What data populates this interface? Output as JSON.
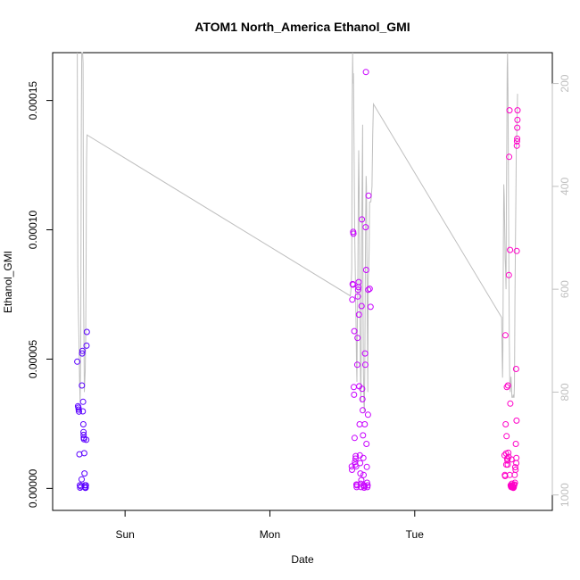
{
  "chart_data": {
    "type": "scatter",
    "title": "ATOM1 North_America Ethanol_GMI",
    "xlabel": "Date",
    "ylabel": "Ethanol_GMI",
    "x_ticks": [
      "Sun",
      "Mon",
      "Tue"
    ],
    "y_ticks": [
      "0.00000",
      "0.00005",
      "0.00010",
      "0.00015"
    ],
    "ylim": [
      -8.5e-06,
      0.0001685
    ],
    "secondary_y": {
      "ticks": [
        "200",
        "400",
        "600",
        "800",
        "1000"
      ],
      "range": [
        1030,
        140
      ],
      "line_color": "#bfbfbf"
    },
    "series": [
      {
        "points": [
          [
            -0.33,
            4.9e-05
          ],
          [
            -0.325,
            3.18e-05
          ],
          [
            -0.322,
            3.12e-05
          ],
          [
            -0.32,
            3.05e-05
          ],
          [
            -0.318,
            2.97e-05
          ],
          [
            -0.315,
            1.32e-05
          ],
          [
            -0.312,
            1.2e-06
          ],
          [
            -0.31,
            3e-07
          ],
          [
            -0.305,
            8e-07
          ],
          [
            -0.3,
            3.5e-06
          ],
          [
            -0.298,
            3.98e-05
          ],
          [
            -0.296,
            5.22e-05
          ],
          [
            -0.294,
            5.32e-05
          ],
          [
            -0.292,
            2.98e-05
          ],
          [
            -0.29,
            3.35e-05
          ],
          [
            -0.288,
            2.48e-05
          ],
          [
            -0.287,
            2.18e-05
          ],
          [
            -0.286,
            2.07e-05
          ],
          [
            -0.285,
            1.96e-05
          ],
          [
            -0.284,
            1.9e-05
          ],
          [
            -0.282,
            1.36e-05
          ],
          [
            -0.28,
            5.8e-06
          ],
          [
            -0.278,
            1.2e-06
          ],
          [
            -0.276,
            5e-07
          ],
          [
            -0.274,
            2e-07
          ],
          [
            -0.272,
            3e-07
          ],
          [
            -0.27,
            1.2e-06
          ],
          [
            -0.268,
            1.88e-05
          ],
          [
            -0.266,
            5.52e-05
          ],
          [
            -0.264,
            6.05e-05
          ]
        ],
        "color": "#5a00ff"
      },
      {
        "points": [
          [
            1.565,
            8.5e-06
          ],
          [
            1.567,
            7.2e-06
          ],
          [
            1.569,
            7.3e-05
          ],
          [
            1.571,
            7.9e-05
          ],
          [
            1.573,
            7.88e-05
          ],
          [
            1.575,
            9.92e-05
          ],
          [
            1.577,
            9.85e-05
          ],
          [
            1.579,
            3.92e-05
          ],
          [
            1.581,
            3.62e-05
          ],
          [
            1.583,
            6.08e-05
          ],
          [
            1.585,
            1.95e-05
          ],
          [
            1.587,
            1.02e-05
          ],
          [
            1.589,
            9.2e-06
          ],
          [
            1.591,
            1.15e-05
          ],
          [
            1.593,
            1.25e-05
          ],
          [
            1.595,
            8.5e-06
          ],
          [
            1.597,
            1.5e-06
          ],
          [
            1.599,
            5e-07
          ],
          [
            1.601,
            1.2e-06
          ],
          [
            1.603,
            4.78e-05
          ],
          [
            1.605,
            5.82e-05
          ],
          [
            1.607,
            7.42e-05
          ],
          [
            1.609,
            7.68e-05
          ],
          [
            1.611,
            7.78e-05
          ],
          [
            1.613,
            7.98e-05
          ],
          [
            1.615,
            6.72e-05
          ],
          [
            1.617,
            3.95e-05
          ],
          [
            1.619,
            2.48e-05
          ],
          [
            1.621,
            1.28e-05
          ],
          [
            1.623,
            9.8e-06
          ],
          [
            1.625,
            5.8e-06
          ],
          [
            1.627,
            1.8e-06
          ],
          [
            1.629,
            5e-07
          ],
          [
            1.631,
            3.2e-06
          ],
          [
            1.633,
            7.05e-05
          ],
          [
            1.635,
            0.000104
          ],
          [
            1.637,
            3.85e-05
          ],
          [
            1.639,
            3.45e-05
          ],
          [
            1.641,
            3.02e-05
          ],
          [
            1.643,
            2.05e-05
          ],
          [
            1.645,
            1.18e-05
          ],
          [
            1.647,
            5.2e-06
          ],
          [
            1.649,
            1.2e-06
          ],
          [
            1.651,
            3e-07
          ],
          [
            1.653,
            8e-07
          ],
          [
            1.655,
            2.48e-05
          ],
          [
            1.657,
            5.22e-05
          ],
          [
            1.659,
            4.78e-05
          ],
          [
            1.661,
            0.000101
          ],
          [
            1.663,
            0.000161
          ],
          [
            1.665,
            8.45e-05
          ],
          [
            1.667,
            1.72e-05
          ],
          [
            1.669,
            8.3e-06
          ],
          [
            1.671,
            2.2e-06
          ],
          [
            1.673,
            5e-07
          ],
          [
            1.675,
            1.2e-06
          ],
          [
            1.677,
            2.85e-05
          ],
          [
            1.679,
            7.68e-05
          ],
          [
            1.681,
            0.0001132
          ],
          [
            1.689,
            7.72e-05
          ],
          [
            1.695,
            7.02e-05
          ]
        ],
        "color": "#c800ff"
      },
      {
        "points": [
          [
            2.62,
            1.28e-05
          ],
          [
            2.622,
            5.2e-06
          ],
          [
            2.624,
            4.8e-06
          ],
          [
            2.626,
            5.92e-05
          ],
          [
            2.628,
            2.48e-05
          ],
          [
            2.63,
            1.35e-05
          ],
          [
            2.632,
            9.2e-06
          ],
          [
            2.634,
            2.02e-05
          ],
          [
            2.636,
            3.92e-05
          ],
          [
            2.638,
            1.15e-05
          ],
          [
            2.64,
            1.08e-05
          ],
          [
            2.642,
            9.2e-06
          ],
          [
            2.644,
            3.98e-05
          ],
          [
            2.646,
            1.38e-05
          ],
          [
            2.648,
            1.22e-05
          ],
          [
            2.65,
            8.25e-05
          ],
          [
            2.652,
            0.0001282
          ],
          [
            2.654,
            0.0001462
          ],
          [
            2.656,
            5.2e-06
          ],
          [
            2.658,
            9.22e-05
          ],
          [
            2.66,
            3.28e-05
          ],
          [
            2.662,
            1.2e-06
          ],
          [
            2.664,
            8e-07
          ],
          [
            2.666,
            5e-07
          ],
          [
            2.668,
            1.12e-05
          ],
          [
            2.67,
            1.8e-06
          ],
          [
            2.672,
            5e-07
          ],
          [
            2.674,
            1.2e-06
          ],
          [
            2.676,
            8e-07
          ],
          [
            2.678,
            5e-07
          ],
          [
            2.68,
            2e-07
          ],
          [
            2.682,
            3e-07
          ],
          [
            2.684,
            5e-07
          ],
          [
            2.686,
            1.2e-06
          ],
          [
            2.688,
            1.5e-06
          ],
          [
            2.69,
            5.2e-06
          ],
          [
            2.692,
            2.2e-06
          ],
          [
            2.694,
            8.2e-06
          ],
          [
            2.696,
            7.2e-06
          ],
          [
            2.698,
            1.72e-05
          ],
          [
            2.7,
            4.62e-05
          ],
          [
            2.701,
            9.8e-06
          ],
          [
            2.702,
            1.18e-05
          ],
          [
            2.703,
            2.62e-05
          ],
          [
            2.704,
            9.18e-05
          ],
          [
            2.705,
            0.0001325
          ],
          [
            2.706,
            0.0001342
          ],
          [
            2.707,
            0.0001352
          ],
          [
            2.708,
            0.0001395
          ],
          [
            2.709,
            0.0001425
          ],
          [
            2.71,
            0.0001462
          ]
        ],
        "color": "#ff00c8"
      }
    ],
    "secondary_line": [
      [
        -0.33,
        100
      ],
      [
        -0.326,
        560
      ],
      [
        -0.322,
        650
      ],
      [
        -0.318,
        700
      ],
      [
        -0.314,
        780
      ],
      [
        -0.31,
        820
      ],
      [
        -0.306,
        700
      ],
      [
        -0.302,
        300
      ],
      [
        -0.299,
        130
      ],
      [
        -0.296,
        130
      ],
      [
        -0.293,
        140
      ],
      [
        -0.29,
        160
      ],
      [
        -0.287,
        600
      ],
      [
        -0.284,
        700
      ],
      [
        -0.281,
        800
      ],
      [
        -0.278,
        780
      ],
      [
        -0.275,
        760
      ],
      [
        -0.272,
        700
      ],
      [
        -0.269,
        550
      ],
      [
        -0.266,
        350
      ],
      [
        -0.263,
        300
      ],
      [
        1.555,
        613
      ],
      [
        1.56,
        600
      ],
      [
        1.565,
        560
      ],
      [
        1.568,
        250
      ],
      [
        1.571,
        130
      ],
      [
        1.574,
        200
      ],
      [
        1.577,
        180
      ],
      [
        1.58,
        280
      ],
      [
        1.583,
        400
      ],
      [
        1.586,
        500
      ],
      [
        1.589,
        560
      ],
      [
        1.592,
        620
      ],
      [
        1.595,
        680
      ],
      [
        1.598,
        740
      ],
      [
        1.601,
        780
      ],
      [
        1.604,
        660
      ],
      [
        1.607,
        600
      ],
      [
        1.61,
        420
      ],
      [
        1.613,
        330
      ],
      [
        1.616,
        400
      ],
      [
        1.619,
        520
      ],
      [
        1.622,
        660
      ],
      [
        1.625,
        760
      ],
      [
        1.628,
        820
      ],
      [
        1.631,
        700
      ],
      [
        1.634,
        480
      ],
      [
        1.637,
        380
      ],
      [
        1.64,
        280
      ],
      [
        1.643,
        600
      ],
      [
        1.646,
        760
      ],
      [
        1.649,
        820
      ],
      [
        1.652,
        840
      ],
      [
        1.655,
        760
      ],
      [
        1.658,
        600
      ],
      [
        1.661,
        460
      ],
      [
        1.664,
        380
      ],
      [
        1.667,
        400
      ],
      [
        1.67,
        540
      ],
      [
        1.673,
        680
      ],
      [
        1.676,
        800
      ],
      [
        1.679,
        580
      ],
      [
        1.682,
        560
      ],
      [
        1.685,
        520
      ],
      [
        1.688,
        430
      ],
      [
        1.691,
        430
      ],
      [
        1.694,
        430
      ],
      [
        1.697,
        430
      ],
      [
        1.7,
        420
      ],
      [
        1.705,
        400
      ],
      [
        1.71,
        300
      ],
      [
        1.715,
        240
      ],
      [
        2.6,
        655
      ],
      [
        2.603,
        720
      ],
      [
        2.606,
        772
      ],
      [
        2.609,
        720
      ],
      [
        2.612,
        520
      ],
      [
        2.615,
        396
      ],
      [
        2.618,
        420
      ],
      [
        2.621,
        480
      ],
      [
        2.624,
        540
      ],
      [
        2.627,
        560
      ],
      [
        2.63,
        600
      ],
      [
        2.633,
        440
      ],
      [
        2.636,
        300
      ],
      [
        2.638,
        170
      ],
      [
        2.641,
        120
      ],
      [
        2.644,
        220
      ],
      [
        2.647,
        380
      ],
      [
        2.65,
        560
      ],
      [
        2.653,
        700
      ],
      [
        2.656,
        780
      ],
      [
        2.659,
        800
      ],
      [
        2.662,
        780
      ],
      [
        2.665,
        770
      ],
      [
        2.668,
        790
      ],
      [
        2.671,
        810
      ],
      [
        2.674,
        810
      ],
      [
        2.677,
        810
      ],
      [
        2.68,
        805
      ],
      [
        2.683,
        810
      ],
      [
        2.686,
        810
      ],
      [
        2.689,
        780
      ],
      [
        2.692,
        620
      ],
      [
        2.695,
        520
      ],
      [
        2.698,
        430
      ],
      [
        2.701,
        330
      ],
      [
        2.704,
        300
      ],
      [
        2.707,
        260
      ],
      [
        2.71,
        220
      ]
    ]
  }
}
